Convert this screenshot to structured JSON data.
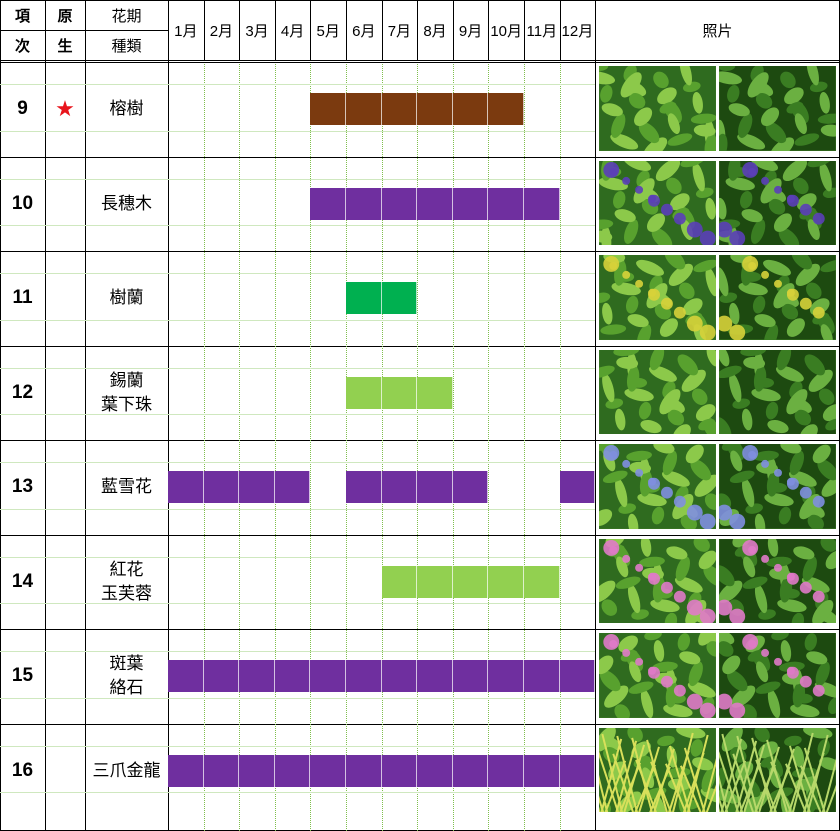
{
  "header": {
    "item_no": [
      "項",
      "次"
    ],
    "native": [
      "原",
      "生"
    ],
    "flowering_period": "花期",
    "species": "種類",
    "photos": "照片",
    "months": [
      "1月",
      "2月",
      "3月",
      "4月",
      "5月",
      "6月",
      "7月",
      "8月",
      "9月",
      "10月",
      "11月",
      "12月"
    ]
  },
  "rows": [
    {
      "no": "9",
      "native": "★",
      "name": [
        "榕樹"
      ],
      "months": [
        5,
        6,
        7,
        8,
        9,
        10
      ],
      "color": "#7b3a0f",
      "photos": [
        "banyan-leaves-photo",
        "banyan-tree-photo"
      ]
    },
    {
      "no": "10",
      "native": "",
      "name": [
        "長穗木"
      ],
      "months": [
        5,
        6,
        7,
        8,
        9,
        10,
        11
      ],
      "color": "#6f2f9f",
      "photos": [
        "purple-flower-photo",
        "purple-shrub-photo"
      ]
    },
    {
      "no": "11",
      "native": "",
      "name": [
        "樹蘭"
      ],
      "months": [
        6,
        7
      ],
      "color": "#00b050",
      "photos": [
        "yellow-berry-photo",
        "green-shrub-photo"
      ]
    },
    {
      "no": "12",
      "native": "",
      "name": [
        "錫蘭",
        "葉下珠"
      ],
      "months": [
        6,
        7,
        8
      ],
      "color": "#92d050",
      "photos": [
        "hanging-fruit-photo",
        "fine-leaf-shrub-photo"
      ]
    },
    {
      "no": "13",
      "native": "",
      "name": [
        "藍雪花"
      ],
      "months": [
        1,
        2,
        3,
        4,
        6,
        7,
        8,
        9,
        12
      ],
      "color": "#6f2f9f",
      "photos": [
        "blue-plumbago-photo",
        "blue-plumbago-bush-photo"
      ]
    },
    {
      "no": "14",
      "native": "",
      "name": [
        "紅花",
        "玉芙蓉"
      ],
      "months": [
        7,
        8,
        9,
        10,
        11
      ],
      "color": "#92d050",
      "photos": [
        "pink-flower-silver-leaf-photo",
        "pink-shrub-photo"
      ]
    },
    {
      "no": "15",
      "native": "",
      "name": [
        "斑葉",
        "絡石"
      ],
      "months": [
        1,
        2,
        3,
        4,
        5,
        6,
        7,
        8,
        9,
        10,
        11,
        12
      ],
      "color": "#6f2f9f",
      "photos": [
        "variegated-leaf-photo",
        "variegated-shrub-photo"
      ]
    },
    {
      "no": "16",
      "native": "",
      "name": [
        "三爪金龍"
      ],
      "months": [
        1,
        2,
        3,
        4,
        5,
        6,
        7,
        8,
        9,
        10,
        11,
        12
      ],
      "color": "#6f2f9f",
      "photos": [
        "yellow-grass-photo",
        "green-grass-photo"
      ]
    }
  ]
}
